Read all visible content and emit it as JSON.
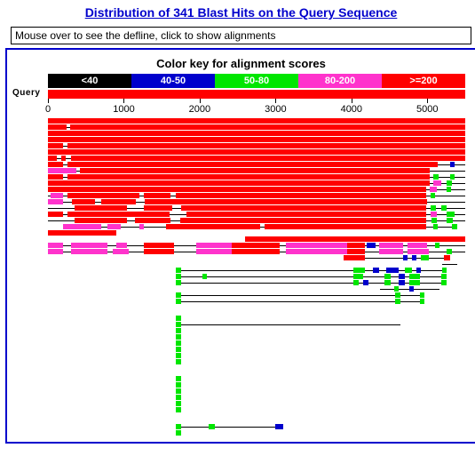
{
  "title": "Distribution of 341 Blast Hits on the Query Sequence",
  "mouseover_text": "Mouse over to see the defline, click to show alignments",
  "colorkey": {
    "title": "Color key for alignment scores",
    "bins": [
      {
        "label": "<40",
        "color": "#000000"
      },
      {
        "label": "40-50",
        "color": "#0000cc"
      },
      {
        "label": "50-80",
        "color": "#00e600"
      },
      {
        "label": "80-200",
        "color": "#ff33cc"
      },
      {
        "label": ">=200",
        "color": "#ff0000"
      }
    ]
  },
  "query": {
    "label": "Query",
    "bar_color": "#ff0000",
    "length": 5500
  },
  "axis": {
    "ticks": [
      0,
      1000,
      2000,
      3000,
      4000,
      5000
    ]
  },
  "score_colors": {
    "<40": "#000000",
    "40-50": "#0000cc",
    "50-80": "#00e600",
    "80-200": "#ff33cc",
    ">=200": "#ff0000"
  },
  "gap_rows": [
    30,
    38,
    44
  ],
  "tracks": [
    {
      "conn": [
        0,
        5500
      ],
      "segs": [
        {
          "s": 0,
          "e": 5500,
          "c": ">=200"
        }
      ]
    },
    {
      "conn": [
        0,
        5500
      ],
      "segs": [
        {
          "s": 0,
          "e": 240,
          "c": ">=200"
        },
        {
          "s": 290,
          "e": 5500,
          "c": ">=200"
        }
      ]
    },
    {
      "conn": [
        0,
        5500
      ],
      "segs": [
        {
          "s": 0,
          "e": 5500,
          "c": ">=200"
        }
      ]
    },
    {
      "conn": [
        0,
        5500
      ],
      "segs": [
        {
          "s": 0,
          "e": 5500,
          "c": ">=200"
        }
      ]
    },
    {
      "conn": [
        0,
        5500
      ],
      "segs": [
        {
          "s": 0,
          "e": 200,
          "c": ">=200"
        },
        {
          "s": 260,
          "e": 5500,
          "c": ">=200"
        }
      ]
    },
    {
      "conn": [
        0,
        5500
      ],
      "segs": [
        {
          "s": 0,
          "e": 5500,
          "c": ">=200"
        }
      ]
    },
    {
      "conn": [
        0,
        5500
      ],
      "segs": [
        {
          "s": 0,
          "e": 120,
          "c": ">=200"
        },
        {
          "s": 170,
          "e": 240,
          "c": ">=200"
        },
        {
          "s": 300,
          "e": 5500,
          "c": ">=200"
        }
      ]
    },
    {
      "conn": [
        0,
        5500
      ],
      "segs": [
        {
          "s": 0,
          "e": 200,
          "c": ">=200"
        },
        {
          "s": 260,
          "e": 5140,
          "c": ">=200"
        },
        {
          "s": 5300,
          "e": 5360,
          "c": "40-50"
        }
      ]
    },
    {
      "conn": [
        0,
        5500
      ],
      "segs": [
        {
          "s": 0,
          "e": 380,
          "c": "80-200"
        },
        {
          "s": 420,
          "e": 5030,
          "c": ">=200"
        },
        {
          "s": 5200,
          "e": 5270,
          "c": "40-50",
          "d": 1
        }
      ]
    },
    {
      "conn": [
        0,
        5500
      ],
      "segs": [
        {
          "s": 0,
          "e": 200,
          "c": ">=200"
        },
        {
          "s": 260,
          "e": 5030,
          "c": ">=200"
        },
        {
          "s": 5080,
          "e": 5150,
          "c": "50-80"
        },
        {
          "s": 5300,
          "e": 5360,
          "c": "50-80"
        }
      ]
    },
    {
      "conn": [
        0,
        5500
      ],
      "segs": [
        {
          "s": 0,
          "e": 5030,
          "c": ">=200"
        },
        {
          "s": 5080,
          "e": 5180,
          "c": "80-200"
        },
        {
          "s": 5250,
          "e": 5320,
          "c": "50-80"
        }
      ]
    },
    {
      "conn": [
        0,
        5500
      ],
      "segs": [
        {
          "s": 0,
          "e": 4980,
          "c": ">=200"
        },
        {
          "s": 5030,
          "e": 5130,
          "c": "80-200"
        },
        {
          "s": 5250,
          "e": 5310,
          "c": "50-80"
        }
      ]
    },
    {
      "conn": [
        0,
        5500
      ],
      "segs": [
        {
          "s": 40,
          "e": 200,
          "c": "80-200"
        },
        {
          "s": 260,
          "e": 1200,
          "c": ">=200"
        },
        {
          "s": 1260,
          "e": 1620,
          "c": ">=200"
        },
        {
          "s": 1680,
          "e": 4980,
          "c": ">=200"
        },
        {
          "s": 5040,
          "e": 5100,
          "c": "50-80"
        }
      ]
    },
    {
      "conn": [
        0,
        5500
      ],
      "segs": [
        {
          "s": 0,
          "e": 200,
          "c": "80-200"
        },
        {
          "s": 320,
          "e": 620,
          "c": ">=200"
        },
        {
          "s": 700,
          "e": 1160,
          "c": ">=200"
        },
        {
          "s": 1280,
          "e": 5000,
          "c": ">=200"
        },
        {
          "s": 5280,
          "e": 5330,
          "c": "40-50",
          "d": 1
        }
      ]
    },
    {
      "conn": [
        0,
        5500
      ],
      "segs": [
        {
          "s": 350,
          "e": 1040,
          "c": ">=200"
        },
        {
          "s": 1260,
          "e": 1640,
          "c": ">=200"
        },
        {
          "s": 1760,
          "e": 4980,
          "c": ">=200"
        },
        {
          "s": 5040,
          "e": 5110,
          "c": "50-80"
        },
        {
          "s": 5180,
          "e": 5250,
          "c": "50-80"
        }
      ]
    },
    {
      "conn": [
        0,
        5500
      ],
      "segs": [
        {
          "s": 0,
          "e": 200,
          "c": ">=200"
        },
        {
          "s": 260,
          "e": 1600,
          "c": ">=200"
        },
        {
          "s": 1660,
          "e": 1720,
          "c": "40-50",
          "d": 1
        },
        {
          "s": 1820,
          "e": 4980,
          "c": ">=200"
        },
        {
          "s": 5040,
          "e": 5120,
          "c": "80-200"
        },
        {
          "s": 5260,
          "e": 5360,
          "c": "50-80"
        }
      ]
    },
    {
      "conn": [
        0,
        5500
      ],
      "segs": [
        {
          "s": 350,
          "e": 1040,
          "c": ">=200"
        },
        {
          "s": 1150,
          "e": 1620,
          "c": ">=200"
        },
        {
          "s": 1740,
          "e": 4980,
          "c": ">=200"
        },
        {
          "s": 5060,
          "e": 5120,
          "c": "50-80"
        },
        {
          "s": 5260,
          "e": 5340,
          "c": "50-80"
        }
      ]
    },
    {
      "conn": [
        200,
        5400
      ],
      "segs": [
        {
          "s": 200,
          "e": 700,
          "c": "80-200"
        },
        {
          "s": 780,
          "e": 960,
          "c": "80-200"
        },
        {
          "s": 1200,
          "e": 1260,
          "c": "80-200"
        },
        {
          "s": 1560,
          "e": 1660,
          "c": ">=200"
        },
        {
          "s": 1660,
          "e": 2800,
          "c": ">=200"
        },
        {
          "s": 2850,
          "e": 4980,
          "c": ">=200"
        },
        {
          "s": 5080,
          "e": 5140,
          "c": "50-80"
        },
        {
          "s": 5320,
          "e": 5400,
          "c": "50-80"
        }
      ]
    },
    {
      "conn": [
        0,
        900
      ],
      "segs": [
        {
          "s": 0,
          "e": 900,
          "c": ">=200"
        }
      ]
    },
    {
      "conn": [
        2600,
        5500
      ],
      "segs": [
        {
          "s": 2600,
          "e": 5500,
          "c": ">=200"
        }
      ]
    },
    {
      "conn": [
        0,
        5500
      ],
      "segs": [
        {
          "s": 0,
          "e": 200,
          "c": "80-200"
        },
        {
          "s": 300,
          "e": 780,
          "c": "80-200"
        },
        {
          "s": 900,
          "e": 1040,
          "c": "80-200"
        },
        {
          "s": 1260,
          "e": 1660,
          "c": ">=200"
        },
        {
          "s": 1960,
          "e": 2420,
          "c": "80-200"
        },
        {
          "s": 2420,
          "e": 3060,
          "c": ">=200"
        },
        {
          "s": 3140,
          "e": 3940,
          "c": "80-200"
        },
        {
          "s": 3940,
          "e": 4180,
          "c": ">=200"
        },
        {
          "s": 4200,
          "e": 4320,
          "c": "40-50"
        },
        {
          "s": 4360,
          "e": 4680,
          "c": "80-200"
        },
        {
          "s": 4740,
          "e": 5000,
          "c": "80-200"
        },
        {
          "s": 5100,
          "e": 5160,
          "c": "50-80"
        }
      ]
    },
    {
      "conn": [
        0,
        5500
      ],
      "segs": [
        {
          "s": 0,
          "e": 200,
          "c": "80-200"
        },
        {
          "s": 300,
          "e": 780,
          "c": "80-200"
        },
        {
          "s": 860,
          "e": 1060,
          "c": "80-200"
        },
        {
          "s": 1260,
          "e": 1660,
          "c": ">=200"
        },
        {
          "s": 1960,
          "e": 2420,
          "c": "80-200"
        },
        {
          "s": 2420,
          "e": 3060,
          "c": ">=200"
        },
        {
          "s": 3140,
          "e": 3940,
          "c": "80-200"
        },
        {
          "s": 3940,
          "e": 4180,
          "c": ">=200"
        },
        {
          "s": 4360,
          "e": 4680,
          "c": "80-200"
        },
        {
          "s": 4740,
          "e": 5020,
          "c": "80-200"
        },
        {
          "s": 5260,
          "e": 5320,
          "c": "50-80"
        }
      ]
    },
    {
      "conn": [
        3900,
        5300
      ],
      "segs": [
        {
          "s": 3900,
          "e": 4180,
          "c": ">=200"
        },
        {
          "s": 4280,
          "e": 4340,
          "c": "40-50",
          "d": 1
        },
        {
          "s": 4460,
          "e": 4520,
          "c": "40-50",
          "d": 1
        },
        {
          "s": 4680,
          "e": 4740,
          "c": "40-50"
        },
        {
          "s": 4800,
          "e": 4860,
          "c": "40-50"
        },
        {
          "s": 4920,
          "e": 5020,
          "c": "50-80"
        },
        {
          "s": 5220,
          "e": 5300,
          "c": ">=200"
        }
      ]
    },
    {
      "conn": [
        5200,
        5400
      ],
      "segs": [
        {
          "s": 5200,
          "e": 5260,
          "c": "40-50",
          "d": 1
        },
        {
          "s": 5340,
          "e": 5400,
          "c": "40-50",
          "d": 1
        }
      ]
    },
    {
      "conn": [
        1680,
        5260
      ],
      "segs": [
        {
          "s": 1680,
          "e": 1760,
          "c": "50-80"
        },
        {
          "s": 4020,
          "e": 4180,
          "c": "50-80"
        },
        {
          "s": 4280,
          "e": 4360,
          "c": "40-50"
        },
        {
          "s": 4460,
          "e": 4620,
          "c": "40-50"
        },
        {
          "s": 4700,
          "e": 4800,
          "c": "50-80"
        },
        {
          "s": 4860,
          "e": 4920,
          "c": "40-50"
        },
        {
          "s": 5200,
          "e": 5260,
          "c": "50-80"
        }
      ]
    },
    {
      "conn": [
        1680,
        5260
      ],
      "segs": [
        {
          "s": 1680,
          "e": 1760,
          "c": "50-80"
        },
        {
          "s": 2040,
          "e": 2100,
          "c": "50-80"
        },
        {
          "s": 4020,
          "e": 4160,
          "c": "50-80"
        },
        {
          "s": 4440,
          "e": 4520,
          "c": "50-80"
        },
        {
          "s": 4620,
          "e": 4700,
          "c": "40-50"
        },
        {
          "s": 4760,
          "e": 4900,
          "c": "50-80"
        },
        {
          "s": 5180,
          "e": 5260,
          "c": "50-80"
        }
      ]
    },
    {
      "conn": [
        1680,
        5260
      ],
      "segs": [
        {
          "s": 1680,
          "e": 1760,
          "c": "50-80"
        },
        {
          "s": 4020,
          "e": 4100,
          "c": "50-80"
        },
        {
          "s": 4160,
          "e": 4220,
          "c": "40-50"
        },
        {
          "s": 4440,
          "e": 4520,
          "c": "50-80"
        },
        {
          "s": 4620,
          "e": 4700,
          "c": "40-50"
        },
        {
          "s": 4760,
          "e": 4900,
          "c": "50-80"
        },
        {
          "s": 5180,
          "e": 5260,
          "c": "50-80"
        }
      ]
    },
    {
      "conn": [
        4380,
        5160
      ],
      "segs": [
        {
          "s": 4380,
          "e": 4450,
          "c": "40-50",
          "d": 1
        },
        {
          "s": 4560,
          "e": 4620,
          "c": "50-80"
        },
        {
          "s": 4760,
          "e": 4820,
          "c": "40-50"
        },
        {
          "s": 4900,
          "e": 4960,
          "c": "40-50",
          "d": 1
        },
        {
          "s": 5100,
          "e": 5160,
          "c": "40-50",
          "d": 1
        }
      ]
    },
    {
      "conn": [
        1680,
        4960
      ],
      "segs": [
        {
          "s": 1680,
          "e": 1760,
          "c": "50-80"
        },
        {
          "s": 4580,
          "e": 4640,
          "c": "50-80"
        },
        {
          "s": 4900,
          "e": 4960,
          "c": "50-80"
        }
      ]
    },
    {
      "conn": [
        1680,
        4960
      ],
      "segs": [
        {
          "s": 1680,
          "e": 1760,
          "c": "50-80"
        },
        {
          "s": 4580,
          "e": 4640,
          "c": "50-80"
        },
        {
          "s": 4900,
          "e": 4960,
          "c": "50-80"
        }
      ]
    },
    {
      "conn": [
        1680,
        1760
      ],
      "segs": [
        {
          "s": 1680,
          "e": 1760,
          "c": "50-80"
        }
      ]
    },
    {
      "conn": [
        1680,
        4640
      ],
      "segs": [
        {
          "s": 1680,
          "e": 1760,
          "c": "50-80"
        },
        {
          "s": 4580,
          "e": 4640,
          "c": "40-50",
          "d": 1
        }
      ]
    },
    {
      "conn": [
        1680,
        1760
      ],
      "segs": [
        {
          "s": 1680,
          "e": 1760,
          "c": "50-80"
        }
      ]
    },
    {
      "conn": [
        1680,
        1760
      ],
      "segs": [
        {
          "s": 1680,
          "e": 1760,
          "c": "50-80"
        }
      ]
    },
    {
      "conn": [
        1680,
        1760
      ],
      "segs": [
        {
          "s": 1680,
          "e": 1760,
          "c": "50-80"
        }
      ]
    },
    {
      "conn": [
        1680,
        1760
      ],
      "segs": [
        {
          "s": 1680,
          "e": 1760,
          "c": "50-80"
        }
      ]
    },
    {
      "conn": [
        1680,
        1760
      ],
      "segs": [
        {
          "s": 1680,
          "e": 1760,
          "c": "50-80"
        }
      ]
    },
    {
      "conn": [
        1680,
        1760
      ],
      "segs": [
        {
          "s": 1680,
          "e": 1760,
          "c": "50-80"
        }
      ]
    },
    {
      "conn": [
        1680,
        1760
      ],
      "segs": [
        {
          "s": 1680,
          "e": 1760,
          "c": "50-80"
        }
      ]
    },
    {
      "conn": [
        1680,
        1760
      ],
      "segs": [
        {
          "s": 1680,
          "e": 1760,
          "c": "50-80"
        }
      ]
    },
    {
      "conn": [
        1680,
        1760
      ],
      "segs": [
        {
          "s": 1680,
          "e": 1760,
          "c": "50-80"
        }
      ]
    },
    {
      "conn": [
        1680,
        1760
      ],
      "segs": [
        {
          "s": 1680,
          "e": 1760,
          "c": "50-80"
        }
      ]
    },
    {
      "conn": [
        1680,
        1760
      ],
      "segs": [
        {
          "s": 1680,
          "e": 1760,
          "c": "50-80"
        }
      ]
    },
    {
      "conn": [
        1680,
        1760
      ],
      "segs": [
        {
          "s": 1680,
          "e": 1760,
          "c": "50-80"
        }
      ]
    },
    {
      "conn": [
        1680,
        3100
      ],
      "segs": [
        {
          "s": 1680,
          "e": 1760,
          "c": "50-80"
        },
        {
          "s": 2120,
          "e": 2200,
          "c": "50-80"
        },
        {
          "s": 3000,
          "e": 3100,
          "c": "40-50"
        }
      ]
    },
    {
      "conn": [
        1680,
        1760
      ],
      "segs": [
        {
          "s": 1680,
          "e": 1760,
          "c": "50-80"
        }
      ]
    }
  ]
}
